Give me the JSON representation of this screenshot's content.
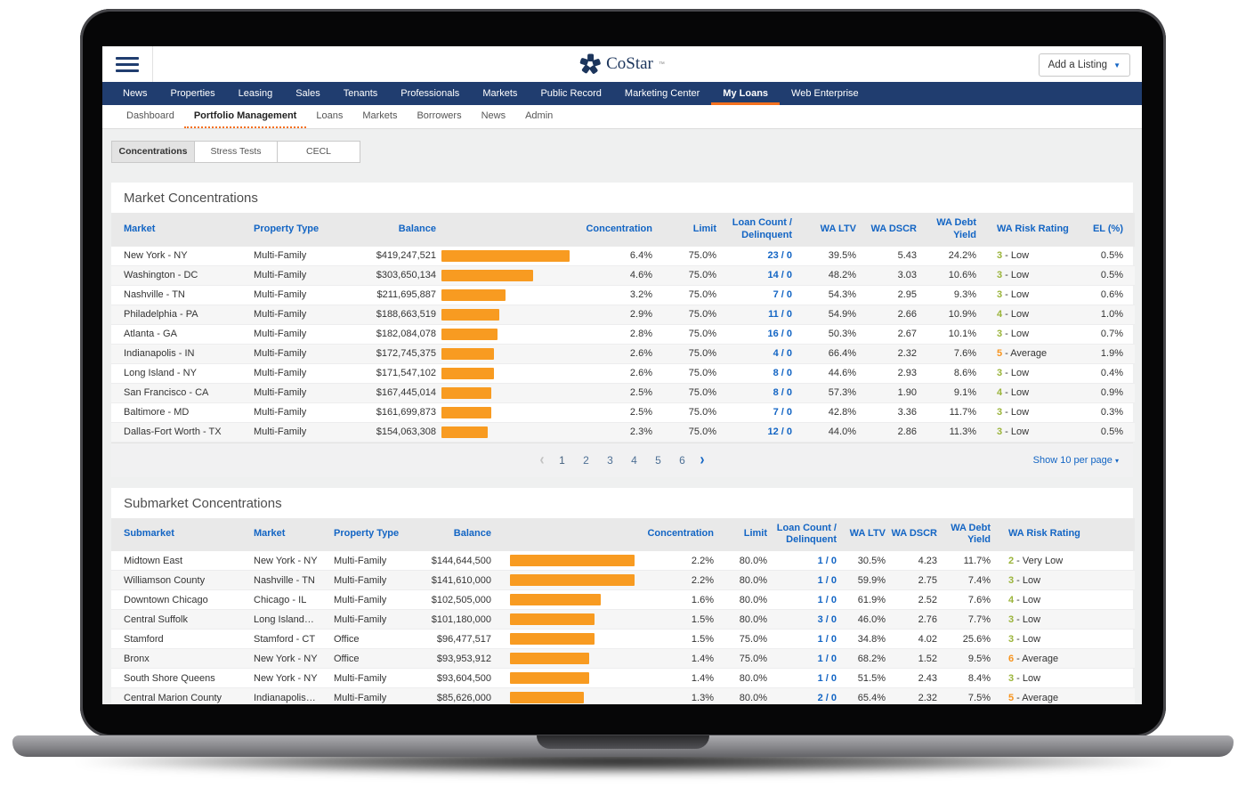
{
  "colors": {
    "navy": "#203d6f",
    "orange": "#f4711f",
    "bar_orange": "#f89b21",
    "link_blue": "#1365c4",
    "risk_green": "#9ab43a",
    "risk_orange": "#f7941e"
  },
  "header": {
    "logo_text": "CoStar",
    "logo_tm": "™",
    "add_listing_label": "Add a Listing",
    "menu_icon": "hamburger-icon",
    "logo_icon": "costar-pinwheel-icon"
  },
  "main_nav": {
    "items": [
      "News",
      "Properties",
      "Leasing",
      "Sales",
      "Tenants",
      "Professionals",
      "Markets",
      "Public Record",
      "Marketing Center",
      "My Loans",
      "Web Enterprise"
    ],
    "active": "My Loans"
  },
  "sub_nav": {
    "items": [
      "Dashboard",
      "Portfolio Management",
      "Loans",
      "Markets",
      "Borrowers",
      "News",
      "Admin"
    ],
    "active": "Portfolio Management"
  },
  "tabs": {
    "items": [
      "Concentrations",
      "Stress Tests",
      "CECL"
    ],
    "active": "Concentrations"
  },
  "market_concentrations": {
    "title": "Market Concentrations",
    "columns": [
      "Market",
      "Property Type",
      "Balance",
      "",
      "Concentration",
      "Limit",
      "Loan Count / Delinquent",
      "WA LTV",
      "WA DSCR",
      "WA Debt Yield",
      "WA Risk Rating",
      "EL (%)"
    ],
    "bar_max_value": 6.4,
    "rows": [
      {
        "market": "New York - NY",
        "property_type": "Multi-Family",
        "balance": "$419,247,521",
        "concentration": "6.4%",
        "limit": "75.0%",
        "loan_count": "23 / 0",
        "wa_ltv": "39.5%",
        "wa_dscr": "5.43",
        "wa_debt_yield": "24.2%",
        "risk_num": "3",
        "risk_label": "Low",
        "risk_color": "green",
        "el": "0.5%"
      },
      {
        "market": "Washington - DC",
        "property_type": "Multi-Family",
        "balance": "$303,650,134",
        "concentration": "4.6%",
        "limit": "75.0%",
        "loan_count": "14 / 0",
        "wa_ltv": "48.2%",
        "wa_dscr": "3.03",
        "wa_debt_yield": "10.6%",
        "risk_num": "3",
        "risk_label": "Low",
        "risk_color": "green",
        "el": "0.5%"
      },
      {
        "market": "Nashville - TN",
        "property_type": "Multi-Family",
        "balance": "$211,695,887",
        "concentration": "3.2%",
        "limit": "75.0%",
        "loan_count": "7 / 0",
        "wa_ltv": "54.3%",
        "wa_dscr": "2.95",
        "wa_debt_yield": "9.3%",
        "risk_num": "3",
        "risk_label": "Low",
        "risk_color": "green",
        "el": "0.6%"
      },
      {
        "market": "Philadelphia - PA",
        "property_type": "Multi-Family",
        "balance": "$188,663,519",
        "concentration": "2.9%",
        "limit": "75.0%",
        "loan_count": "11 / 0",
        "wa_ltv": "54.9%",
        "wa_dscr": "2.66",
        "wa_debt_yield": "10.9%",
        "risk_num": "4",
        "risk_label": "Low",
        "risk_color": "green",
        "el": "1.0%"
      },
      {
        "market": "Atlanta - GA",
        "property_type": "Multi-Family",
        "balance": "$182,084,078",
        "concentration": "2.8%",
        "limit": "75.0%",
        "loan_count": "16 / 0",
        "wa_ltv": "50.3%",
        "wa_dscr": "2.67",
        "wa_debt_yield": "10.1%",
        "risk_num": "3",
        "risk_label": "Low",
        "risk_color": "green",
        "el": "0.7%"
      },
      {
        "market": "Indianapolis - IN",
        "property_type": "Multi-Family",
        "balance": "$172,745,375",
        "concentration": "2.6%",
        "limit": "75.0%",
        "loan_count": "4 / 0",
        "wa_ltv": "66.4%",
        "wa_dscr": "2.32",
        "wa_debt_yield": "7.6%",
        "risk_num": "5",
        "risk_label": "Average",
        "risk_color": "orange",
        "el": "1.9%"
      },
      {
        "market": "Long Island - NY",
        "property_type": "Multi-Family",
        "balance": "$171,547,102",
        "concentration": "2.6%",
        "limit": "75.0%",
        "loan_count": "8 / 0",
        "wa_ltv": "44.6%",
        "wa_dscr": "2.93",
        "wa_debt_yield": "8.6%",
        "risk_num": "3",
        "risk_label": "Low",
        "risk_color": "green",
        "el": "0.4%"
      },
      {
        "market": "San Francisco - CA",
        "property_type": "Multi-Family",
        "balance": "$167,445,014",
        "concentration": "2.5%",
        "limit": "75.0%",
        "loan_count": "8 / 0",
        "wa_ltv": "57.3%",
        "wa_dscr": "1.90",
        "wa_debt_yield": "9.1%",
        "risk_num": "4",
        "risk_label": "Low",
        "risk_color": "green",
        "el": "0.9%"
      },
      {
        "market": "Baltimore - MD",
        "property_type": "Multi-Family",
        "balance": "$161,699,873",
        "concentration": "2.5%",
        "limit": "75.0%",
        "loan_count": "7 / 0",
        "wa_ltv": "42.8%",
        "wa_dscr": "3.36",
        "wa_debt_yield": "11.7%",
        "risk_num": "3",
        "risk_label": "Low",
        "risk_color": "green",
        "el": "0.3%"
      },
      {
        "market": "Dallas-Fort Worth - TX",
        "property_type": "Multi-Family",
        "balance": "$154,063,308",
        "concentration": "2.3%",
        "limit": "75.0%",
        "loan_count": "12 / 0",
        "wa_ltv": "44.0%",
        "wa_dscr": "2.86",
        "wa_debt_yield": "11.3%",
        "risk_num": "3",
        "risk_label": "Low",
        "risk_color": "green",
        "el": "0.5%"
      }
    ],
    "pagination": {
      "pages": [
        "1",
        "2",
        "3",
        "4",
        "5",
        "6"
      ],
      "current": "1",
      "prev_icon": "chevron-left-icon",
      "next_icon": "chevron-right-icon",
      "show_label": "Show 10 per page"
    }
  },
  "submarket_concentrations": {
    "title": "Submarket Concentrations",
    "columns": [
      "Submarket",
      "Market",
      "Property Type",
      "Balance",
      "",
      "Concentration",
      "Limit",
      "Loan Count / Delinquent",
      "WA LTV",
      "WA DSCR",
      "WA Debt Yield",
      "WA Risk Rating"
    ],
    "bar_max_value": 2.2,
    "rows": [
      {
        "submarket": "Midtown East",
        "market": "New York - NY",
        "property_type": "Multi-Family",
        "balance": "$144,644,500",
        "concentration": "2.2%",
        "limit": "80.0%",
        "loan_count": "1 / 0",
        "wa_ltv": "30.5%",
        "wa_dscr": "4.23",
        "wa_debt_yield": "11.7%",
        "risk_num": "2",
        "risk_label": "Very Low",
        "risk_color": "green"
      },
      {
        "submarket": "Williamson County",
        "market": "Nashville - TN",
        "property_type": "Multi-Family",
        "balance": "$141,610,000",
        "concentration": "2.2%",
        "limit": "80.0%",
        "loan_count": "1 / 0",
        "wa_ltv": "59.9%",
        "wa_dscr": "2.75",
        "wa_debt_yield": "7.4%",
        "risk_num": "3",
        "risk_label": "Low",
        "risk_color": "green"
      },
      {
        "submarket": "Downtown Chicago",
        "market": "Chicago - IL",
        "property_type": "Multi-Family",
        "balance": "$102,505,000",
        "concentration": "1.6%",
        "limit": "80.0%",
        "loan_count": "1 / 0",
        "wa_ltv": "61.9%",
        "wa_dscr": "2.52",
        "wa_debt_yield": "7.6%",
        "risk_num": "4",
        "risk_label": "Low",
        "risk_color": "green"
      },
      {
        "submarket": "Central Suffolk",
        "market": "Long Island…",
        "property_type": "Multi-Family",
        "balance": "$101,180,000",
        "concentration": "1.5%",
        "limit": "80.0%",
        "loan_count": "3 / 0",
        "wa_ltv": "46.0%",
        "wa_dscr": "2.76",
        "wa_debt_yield": "7.7%",
        "risk_num": "3",
        "risk_label": "Low",
        "risk_color": "green"
      },
      {
        "submarket": "Stamford",
        "market": "Stamford - CT",
        "property_type": "Office",
        "balance": "$96,477,517",
        "concentration": "1.5%",
        "limit": "75.0%",
        "loan_count": "1 / 0",
        "wa_ltv": "34.8%",
        "wa_dscr": "4.02",
        "wa_debt_yield": "25.6%",
        "risk_num": "3",
        "risk_label": "Low",
        "risk_color": "green"
      },
      {
        "submarket": "Bronx",
        "market": "New York - NY",
        "property_type": "Office",
        "balance": "$93,953,912",
        "concentration": "1.4%",
        "limit": "75.0%",
        "loan_count": "1 / 0",
        "wa_ltv": "68.2%",
        "wa_dscr": "1.52",
        "wa_debt_yield": "9.5%",
        "risk_num": "6",
        "risk_label": "Average",
        "risk_color": "orange"
      },
      {
        "submarket": "South Shore Queens",
        "market": "New York - NY",
        "property_type": "Multi-Family",
        "balance": "$93,604,500",
        "concentration": "1.4%",
        "limit": "80.0%",
        "loan_count": "1 / 0",
        "wa_ltv": "51.5%",
        "wa_dscr": "2.43",
        "wa_debt_yield": "8.4%",
        "risk_num": "3",
        "risk_label": "Low",
        "risk_color": "green"
      },
      {
        "submarket": "Central Marion County",
        "market": "Indianapolis…",
        "property_type": "Multi-Family",
        "balance": "$85,626,000",
        "concentration": "1.3%",
        "limit": "80.0%",
        "loan_count": "2 / 0",
        "wa_ltv": "65.4%",
        "wa_dscr": "2.32",
        "wa_debt_yield": "7.5%",
        "risk_num": "5",
        "risk_label": "Average",
        "risk_color": "orange"
      }
    ]
  }
}
